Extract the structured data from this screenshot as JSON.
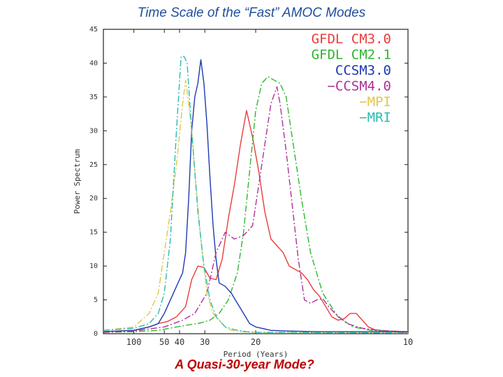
{
  "slide": {
    "title": "Time Scale of the “Fast” AMOC Modes",
    "caption": "A Quasi-30-year Mode?"
  },
  "chart_data": {
    "type": "line",
    "title": "Time Scale of the “Fast” AMOC Modes",
    "xlabel": "Period (Years)",
    "ylabel": "Power Spectrum",
    "x_tick_labels": [
      "100",
      "50",
      "40",
      "30",
      "20",
      "10"
    ],
    "x_tick_frequencies": [
      0.01,
      0.02,
      0.025,
      0.0333,
      0.05,
      0.1
    ],
    "xlim_frequency": [
      0.0,
      0.1
    ],
    "ylim": [
      0,
      45
    ],
    "y_ticks": [
      0,
      5,
      10,
      15,
      20,
      25,
      30,
      35,
      40,
      45
    ],
    "legend_position": "top-right",
    "series": [
      {
        "name": "GFDL  CM3.0",
        "color": "#e83c3c",
        "style": "solid",
        "x": [
          0.0,
          0.01,
          0.015,
          0.018,
          0.021,
          0.024,
          0.027,
          0.029,
          0.031,
          0.033,
          0.035,
          0.037,
          0.039,
          0.041,
          0.043,
          0.045,
          0.047,
          0.049,
          0.051,
          0.053,
          0.055,
          0.057,
          0.059,
          0.061,
          0.063,
          0.065,
          0.067,
          0.069,
          0.071,
          0.073,
          0.075,
          0.077,
          0.079,
          0.081,
          0.083,
          0.085,
          0.087,
          0.089,
          0.091,
          0.093,
          0.095,
          0.1
        ],
        "y": [
          0.3,
          0.5,
          1.0,
          1.5,
          1.8,
          2.5,
          4.0,
          8.0,
          10.0,
          9.8,
          8.2,
          8.0,
          11.0,
          17.0,
          22.0,
          28.0,
          33.0,
          29.0,
          24.0,
          18.0,
          14.0,
          13.0,
          12.0,
          10.0,
          9.5,
          9.0,
          8.0,
          6.5,
          5.5,
          4.0,
          2.5,
          2.0,
          2.2,
          3.0,
          3.0,
          2.0,
          1.0,
          0.6,
          0.5,
          0.4,
          0.3,
          0.2
        ]
      },
      {
        "name": "GFDL  CM2.1",
        "color": "#2fb52f",
        "style": "dashdot",
        "x": [
          0.0,
          0.01,
          0.018,
          0.024,
          0.028,
          0.032,
          0.035,
          0.038,
          0.041,
          0.044,
          0.046,
          0.048,
          0.05,
          0.052,
          0.054,
          0.056,
          0.058,
          0.06,
          0.062,
          0.065,
          0.068,
          0.072,
          0.077,
          0.082,
          0.088,
          0.1
        ],
        "y": [
          0.2,
          0.3,
          0.5,
          1.0,
          1.3,
          1.6,
          2.0,
          3.0,
          5.0,
          9.0,
          15.0,
          24.0,
          33.0,
          37.0,
          38.0,
          37.5,
          37.0,
          35.0,
          29.0,
          20.0,
          12.0,
          6.0,
          2.5,
          1.0,
          0.5,
          0.3
        ]
      },
      {
        "name": "CCSM3.0",
        "color": "#1c3ab0",
        "style": "solid",
        "x": [
          0.0,
          0.01,
          0.015,
          0.018,
          0.02,
          0.022,
          0.024,
          0.026,
          0.027,
          0.028,
          0.029,
          0.03,
          0.031,
          0.032,
          0.033,
          0.034,
          0.035,
          0.036,
          0.037,
          0.038,
          0.04,
          0.042,
          0.044,
          0.046,
          0.048,
          0.05,
          0.055,
          0.06,
          0.07,
          0.1
        ],
        "y": [
          0.3,
          0.5,
          1.0,
          1.5,
          3.0,
          5.0,
          7.0,
          9.0,
          12.0,
          20.0,
          30.0,
          35.0,
          37.0,
          40.5,
          37.0,
          31.0,
          23.0,
          16.0,
          11.0,
          7.5,
          7.0,
          6.0,
          4.5,
          3.0,
          1.5,
          1.0,
          0.5,
          0.4,
          0.3,
          0.3
        ]
      },
      {
        "name": "CCSM4.0",
        "color": "#b0309a",
        "style": "dashdot",
        "x": [
          0.0,
          0.01,
          0.02,
          0.026,
          0.03,
          0.034,
          0.037,
          0.04,
          0.043,
          0.046,
          0.049,
          0.051,
          0.053,
          0.055,
          0.057,
          0.058,
          0.06,
          0.062,
          0.064,
          0.066,
          0.068,
          0.07,
          0.072,
          0.074,
          0.076,
          0.08,
          0.085,
          0.09,
          0.1
        ],
        "y": [
          0.2,
          0.4,
          1.0,
          2.0,
          3.0,
          6.0,
          12.0,
          15.0,
          14.0,
          14.5,
          16.0,
          22.0,
          28.0,
          34.0,
          36.5,
          34.0,
          27.0,
          19.0,
          11.0,
          5.0,
          4.5,
          5.0,
          5.2,
          4.0,
          3.0,
          1.5,
          0.8,
          0.5,
          0.3
        ]
      },
      {
        "name": "MPI",
        "color": "#e0c74a",
        "style": "dashdot",
        "x": [
          0.0,
          0.01,
          0.015,
          0.018,
          0.02,
          0.022,
          0.024,
          0.026,
          0.027,
          0.028,
          0.029,
          0.03,
          0.032,
          0.034,
          0.036,
          0.038,
          0.04,
          0.042,
          0.045,
          0.05,
          0.06,
          0.1
        ],
        "y": [
          0.5,
          1.0,
          3.0,
          6.0,
          12.0,
          18.0,
          25.0,
          34.0,
          37.5,
          34.0,
          30.0,
          24.0,
          14.0,
          6.0,
          3.0,
          2.0,
          1.0,
          0.5,
          0.3,
          0.2,
          0.2,
          0.1
        ]
      },
      {
        "name": "MRI",
        "color": "#2bbcb0",
        "style": "dashdot",
        "x": [
          0.0,
          0.01,
          0.015,
          0.018,
          0.02,
          0.022,
          0.024,
          0.0255,
          0.0265,
          0.0275,
          0.029,
          0.031,
          0.033,
          0.035,
          0.037,
          0.04,
          0.043,
          0.047,
          0.05,
          0.06,
          0.1
        ],
        "y": [
          0.5,
          0.8,
          1.5,
          3.0,
          6.0,
          14.0,
          30.0,
          41.0,
          41.0,
          40.0,
          30.0,
          18.0,
          10.0,
          5.0,
          2.5,
          1.0,
          0.6,
          0.3,
          0.2,
          0.2,
          0.1
        ]
      }
    ]
  }
}
